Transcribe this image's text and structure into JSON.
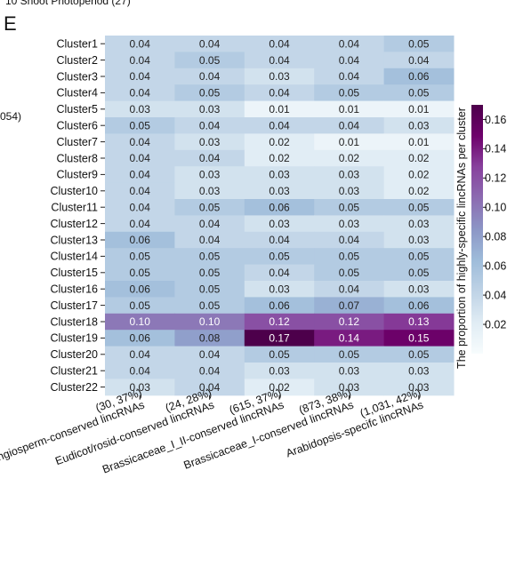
{
  "header": {
    "top_text": "10 Shoot Photoperiod (27)",
    "panel_letter": "E",
    "left_text": "054)"
  },
  "chart_data": {
    "type": "heatmap",
    "rows": [
      "Cluster1",
      "Cluster2",
      "Cluster3",
      "Cluster4",
      "Cluster5",
      "Cluster6",
      "Cluster7",
      "Cluster8",
      "Cluster9",
      "Cluster10",
      "Cluster11",
      "Cluster12",
      "Cluster13",
      "Cluster14",
      "Cluster15",
      "Cluster16",
      "Cluster17",
      "Cluster18",
      "Cluster19",
      "Cluster20",
      "Cluster21",
      "Cluster22"
    ],
    "columns": [
      {
        "name": "Angiosperm-conserved lincRNAs",
        "count": "(30, 37%)"
      },
      {
        "name": "Eudicot/rosid-conserved lincRNAs",
        "count": "(24, 28%)"
      },
      {
        "name": "Brassicaceae_I_II-conserved lincRNAs",
        "count": "(615, 37%)"
      },
      {
        "name": "Brassicaceae_I-conserved lincRNAs",
        "count": "(873, 38%)"
      },
      {
        "name": "Arabidopsis-specifc lincRNAs",
        "count": "(1,031, 42%)"
      }
    ],
    "values": [
      [
        0.04,
        0.04,
        0.04,
        0.04,
        0.05
      ],
      [
        0.04,
        0.05,
        0.04,
        0.04,
        0.04
      ],
      [
        0.04,
        0.04,
        0.03,
        0.04,
        0.06
      ],
      [
        0.04,
        0.05,
        0.04,
        0.05,
        0.05
      ],
      [
        0.03,
        0.03,
        0.01,
        0.01,
        0.01
      ],
      [
        0.05,
        0.04,
        0.04,
        0.04,
        0.03
      ],
      [
        0.04,
        0.03,
        0.02,
        0.01,
        0.01
      ],
      [
        0.04,
        0.04,
        0.02,
        0.02,
        0.02
      ],
      [
        0.04,
        0.03,
        0.03,
        0.03,
        0.02
      ],
      [
        0.04,
        0.03,
        0.03,
        0.03,
        0.02
      ],
      [
        0.04,
        0.05,
        0.06,
        0.05,
        0.05
      ],
      [
        0.04,
        0.04,
        0.03,
        0.03,
        0.03
      ],
      [
        0.06,
        0.04,
        0.04,
        0.04,
        0.03
      ],
      [
        0.05,
        0.05,
        0.05,
        0.05,
        0.05
      ],
      [
        0.05,
        0.05,
        0.04,
        0.05,
        0.05
      ],
      [
        0.06,
        0.05,
        0.03,
        0.04,
        0.03
      ],
      [
        0.05,
        0.05,
        0.06,
        0.07,
        0.06
      ],
      [
        0.1,
        0.1,
        0.12,
        0.12,
        0.13
      ],
      [
        0.06,
        0.08,
        0.17,
        0.14,
        0.15
      ],
      [
        0.04,
        0.04,
        0.05,
        0.05,
        0.05
      ],
      [
        0.04,
        0.04,
        0.03,
        0.03,
        0.03
      ],
      [
        0.03,
        0.04,
        0.02,
        0.03,
        0.03
      ]
    ],
    "value_labels": [
      [
        "0.04",
        "0.04",
        "0.04",
        "0.04",
        "0.05"
      ],
      [
        "0.04",
        "0.05",
        "0.04",
        "0.04",
        "0.04"
      ],
      [
        "0.04",
        "0.04",
        "0.03",
        "0.04",
        "0.06"
      ],
      [
        "0.04",
        "0.05",
        "0.04",
        "0.05",
        "0.05"
      ],
      [
        "0.03",
        "0.03",
        "0.01",
        "0.01",
        "0.01"
      ],
      [
        "0.05",
        "0.04",
        "0.04",
        "0.04",
        "0.03"
      ],
      [
        "0.04",
        "0.03",
        "0.02",
        "0.01",
        "0.01"
      ],
      [
        "0.04",
        "0.04",
        "0.02",
        "0.02",
        "0.02"
      ],
      [
        "0.04",
        "0.03",
        "0.03",
        "0.03",
        "0.02"
      ],
      [
        "0.04",
        "0.03",
        "0.03",
        "0.03",
        "0.02"
      ],
      [
        "0.04",
        "0.05",
        "0.06",
        "0.05",
        "0.05"
      ],
      [
        "0.04",
        "0.04",
        "0.03",
        "0.03",
        "0.03"
      ],
      [
        "0.06",
        "0.04",
        "0.04",
        "0.04",
        "0.03"
      ],
      [
        "0.05",
        "0.05",
        "0.05",
        "0.05",
        "0.05"
      ],
      [
        "0.05",
        "0.05",
        "0.04",
        "0.05",
        "0.05"
      ],
      [
        "0.06",
        "0.05",
        "0.03",
        "0.04",
        "0.03"
      ],
      [
        "0.05",
        "0.05",
        "0.06",
        "0.07",
        "0.06"
      ],
      [
        "0.10",
        "0.10",
        "0.12",
        "0.12",
        "0.13"
      ],
      [
        "0.06",
        "0.08",
        "0.17",
        "0.14",
        "0.15"
      ],
      [
        "0.04",
        "0.04",
        "0.05",
        "0.05",
        "0.05"
      ],
      [
        "0.04",
        "0.04",
        "0.03",
        "0.03",
        "0.03"
      ],
      [
        "0.03",
        "0.04",
        "0.02",
        "0.03",
        "0.03"
      ]
    ],
    "colorbar": {
      "title": "The proportion of highly-specific lincRNAs per cluster",
      "min": 0.0,
      "max": 0.17,
      "ticks": [
        "0.02",
        "0.04",
        "0.06",
        "0.08",
        "0.10",
        "0.12",
        "0.14",
        "0.16"
      ],
      "tick_values": [
        0.02,
        0.04,
        0.06,
        0.08,
        0.1,
        0.12,
        0.14,
        0.16
      ],
      "colormap": [
        "#f7fcfd",
        "#e0ecf4",
        "#bfd3e6",
        "#9ebcda",
        "#8c96c6",
        "#8c6bb1",
        "#88419d",
        "#6e016b",
        "#4d004b"
      ]
    },
    "grid": false
  }
}
